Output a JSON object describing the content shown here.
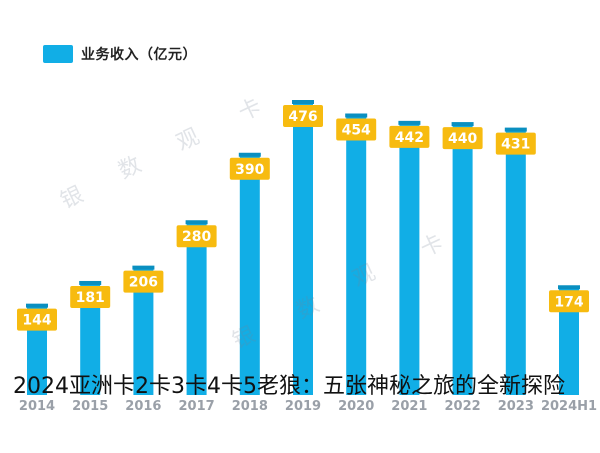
{
  "legend": {
    "label": "业务收入（亿元）",
    "color": "#11aee6"
  },
  "caption": "2024亚洲卡2卡3卡4卡5老狼：五张神秘之旅的全新探险",
  "watermark": [
    "银",
    "数",
    "观",
    "卡",
    "银",
    "数",
    "观",
    "卡"
  ],
  "colors": {
    "bar": "#11aee6",
    "bar_cap": "#0a8fc0",
    "label_bg": "#f7bb10",
    "label_text": "#ffffff"
  },
  "chart_data": {
    "type": "bar",
    "categories": [
      "2014",
      "2015",
      "2016",
      "2017",
      "2018",
      "2019",
      "2020",
      "2021",
      "2022",
      "2023",
      "2024H1"
    ],
    "values": [
      144,
      181,
      206,
      280,
      390,
      476,
      454,
      442,
      440,
      431,
      174
    ],
    "data_labels": [
      "144",
      "181",
      "206",
      "280",
      "390",
      "476",
      "454",
      "442",
      "440",
      "431",
      "174"
    ],
    "series": [
      {
        "name": "业务收入（亿元）",
        "values": [
          144,
          181,
          206,
          280,
          390,
          476,
          454,
          442,
          440,
          431,
          174
        ]
      }
    ],
    "ylim": [
      0,
      500
    ],
    "grid": false,
    "legend_position": "top-left"
  }
}
